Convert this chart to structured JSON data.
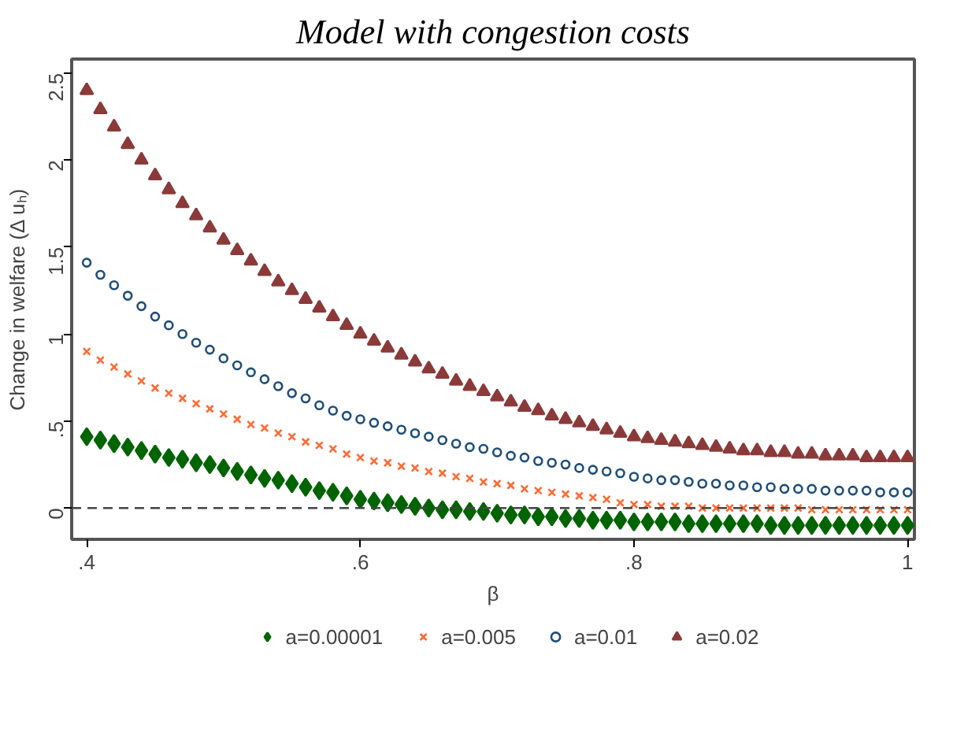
{
  "chart_data": {
    "type": "scatter",
    "title": "Model with congestion costs",
    "xlabel": "β",
    "ylabel": "Change in welfare (Δ uₕ)",
    "x": [
      0.4,
      0.41,
      0.42,
      0.43,
      0.44,
      0.45,
      0.46,
      0.47,
      0.48,
      0.49,
      0.5,
      0.51,
      0.52,
      0.53,
      0.54,
      0.55,
      0.56,
      0.57,
      0.58,
      0.59,
      0.6,
      0.61,
      0.62,
      0.63,
      0.64,
      0.65,
      0.66,
      0.67,
      0.68,
      0.69,
      0.7,
      0.71,
      0.72,
      0.73,
      0.74,
      0.75,
      0.76,
      0.77,
      0.78,
      0.79,
      0.8,
      0.81,
      0.82,
      0.83,
      0.84,
      0.85,
      0.86,
      0.87,
      0.88,
      0.89,
      0.9,
      0.91,
      0.92,
      0.93,
      0.94,
      0.95,
      0.96,
      0.97,
      0.98,
      0.99,
      1.0
    ],
    "series": [
      {
        "name": "a=0.00001",
        "color": "#006400",
        "marker": "diamond",
        "values": [
          0.41,
          0.39,
          0.37,
          0.35,
          0.33,
          0.31,
          0.29,
          0.28,
          0.26,
          0.25,
          0.23,
          0.21,
          0.19,
          0.17,
          0.16,
          0.14,
          0.12,
          0.1,
          0.09,
          0.07,
          0.05,
          0.04,
          0.03,
          0.02,
          0.01,
          0.0,
          -0.01,
          -0.01,
          -0.02,
          -0.02,
          -0.03,
          -0.04,
          -0.04,
          -0.05,
          -0.05,
          -0.06,
          -0.06,
          -0.07,
          -0.07,
          -0.07,
          -0.08,
          -0.08,
          -0.08,
          -0.08,
          -0.09,
          -0.09,
          -0.09,
          -0.09,
          -0.09,
          -0.09,
          -0.1,
          -0.1,
          -0.1,
          -0.1,
          -0.1,
          -0.1,
          -0.1,
          -0.1,
          -0.1,
          -0.1,
          -0.1
        ]
      },
      {
        "name": "a=0.005",
        "color": "#ff6a33",
        "marker": "cross",
        "values": [
          0.9,
          0.85,
          0.81,
          0.77,
          0.73,
          0.69,
          0.66,
          0.63,
          0.6,
          0.57,
          0.54,
          0.51,
          0.48,
          0.46,
          0.43,
          0.41,
          0.38,
          0.36,
          0.34,
          0.31,
          0.29,
          0.27,
          0.26,
          0.24,
          0.23,
          0.21,
          0.2,
          0.18,
          0.17,
          0.15,
          0.14,
          0.13,
          0.11,
          0.1,
          0.09,
          0.08,
          0.07,
          0.06,
          0.05,
          0.03,
          0.02,
          0.02,
          0.01,
          0.01,
          0.01,
          0.0,
          0.0,
          0.0,
          0.0,
          0.0,
          0.0,
          0.0,
          0.0,
          -0.01,
          -0.01,
          -0.01,
          -0.01,
          -0.01,
          -0.01,
          -0.01,
          -0.01
        ]
      },
      {
        "name": "a=0.01",
        "color": "#1f4e79",
        "marker": "circle",
        "values": [
          1.41,
          1.34,
          1.28,
          1.22,
          1.16,
          1.1,
          1.05,
          1.0,
          0.95,
          0.91,
          0.86,
          0.82,
          0.78,
          0.74,
          0.7,
          0.66,
          0.63,
          0.59,
          0.56,
          0.53,
          0.51,
          0.49,
          0.47,
          0.45,
          0.43,
          0.41,
          0.39,
          0.37,
          0.35,
          0.34,
          0.32,
          0.3,
          0.29,
          0.27,
          0.26,
          0.25,
          0.23,
          0.22,
          0.21,
          0.2,
          0.18,
          0.17,
          0.16,
          0.16,
          0.15,
          0.14,
          0.14,
          0.13,
          0.13,
          0.12,
          0.12,
          0.11,
          0.11,
          0.11,
          0.1,
          0.1,
          0.1,
          0.1,
          0.09,
          0.09,
          0.09
        ]
      },
      {
        "name": "a=0.02",
        "color": "#8b3a3a",
        "marker": "triangle",
        "values": [
          2.4,
          2.29,
          2.19,
          2.09,
          2.0,
          1.91,
          1.83,
          1.75,
          1.68,
          1.61,
          1.54,
          1.48,
          1.42,
          1.36,
          1.3,
          1.25,
          1.2,
          1.15,
          1.1,
          1.05,
          1.0,
          0.96,
          0.92,
          0.88,
          0.84,
          0.8,
          0.77,
          0.73,
          0.7,
          0.67,
          0.64,
          0.61,
          0.58,
          0.56,
          0.53,
          0.51,
          0.49,
          0.47,
          0.45,
          0.43,
          0.41,
          0.4,
          0.39,
          0.38,
          0.37,
          0.36,
          0.35,
          0.34,
          0.33,
          0.33,
          0.32,
          0.32,
          0.31,
          0.31,
          0.3,
          0.3,
          0.3,
          0.29,
          0.29,
          0.29,
          0.29
        ]
      }
    ],
    "xlim": [
      0.389,
      1.005
    ],
    "ylim": [
      -0.18,
      2.58
    ],
    "xticks": [
      {
        "value": 0.4,
        "label": ".4"
      },
      {
        "value": 0.6,
        "label": ".6"
      },
      {
        "value": 0.8,
        "label": ".8"
      },
      1
    ],
    "yticks": [
      0,
      {
        "value": 0.5,
        "label": ".5"
      },
      1,
      1.5,
      2,
      2.5
    ],
    "ref_lines": [
      {
        "axis": "y",
        "value": 0,
        "color": "#444444",
        "line_style": "dashed"
      }
    ],
    "grid": false,
    "legend": "bottom"
  }
}
